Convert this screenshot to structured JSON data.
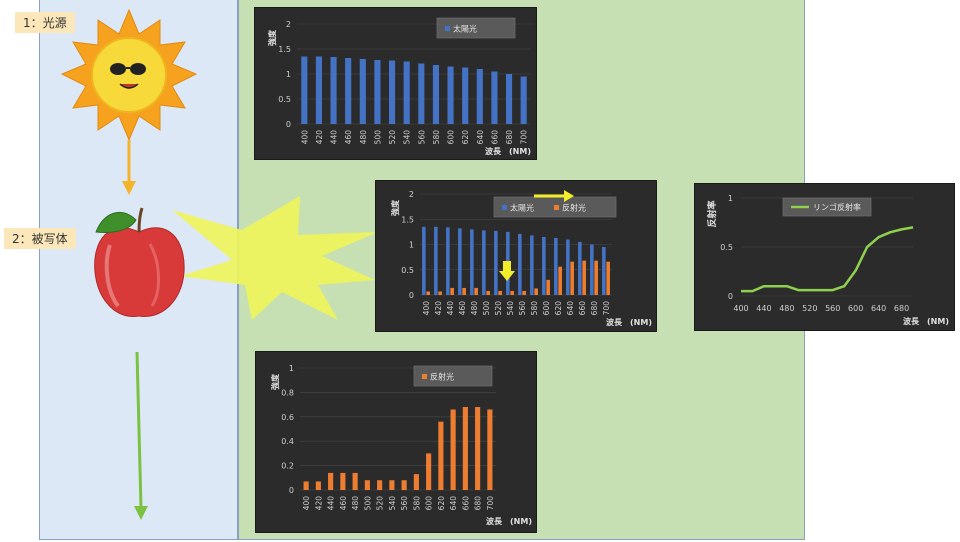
{
  "steps": {
    "step1": "1：光源",
    "step2": "2：被写体"
  },
  "colors": {
    "sun_series": "#4472c4",
    "reflect_series": "#ed7d31",
    "ratio_series": "#8fd14f",
    "arrow_orange": "#f5b32a",
    "arrow_green": "#7cc242",
    "glow": "#eef55a"
  },
  "icons": [
    "sun-icon",
    "apple-icon",
    "burst-icon"
  ],
  "chart_data": [
    {
      "id": "sun",
      "type": "bar",
      "ylabel": "強度",
      "xlabel": "波長　(NM)",
      "ylim": [
        0,
        2
      ],
      "yticks": [
        "0",
        "0.5",
        "1",
        "1.5",
        "2"
      ],
      "categories": [
        "400",
        "420",
        "440",
        "460",
        "480",
        "500",
        "520",
        "540",
        "560",
        "580",
        "600",
        "620",
        "640",
        "660",
        "680",
        "700"
      ],
      "legend_position": "top-right",
      "series": [
        {
          "name": "太陽光",
          "color": "#4472c4",
          "values": [
            1.35,
            1.35,
            1.34,
            1.32,
            1.3,
            1.28,
            1.27,
            1.25,
            1.21,
            1.18,
            1.15,
            1.13,
            1.1,
            1.05,
            1.0,
            0.95
          ]
        }
      ]
    },
    {
      "id": "combined",
      "type": "bar",
      "ylabel": "強度",
      "xlabel": "波長　(NM)",
      "ylim": [
        0,
        2
      ],
      "yticks": [
        "0",
        "0.5",
        "1",
        "1.5",
        "2"
      ],
      "categories": [
        "400",
        "420",
        "440",
        "460",
        "480",
        "500",
        "520",
        "540",
        "560",
        "580",
        "600",
        "620",
        "640",
        "660",
        "680",
        "700"
      ],
      "legend_position": "top-right",
      "series": [
        {
          "name": "太陽光",
          "color": "#4472c4",
          "values": [
            1.35,
            1.35,
            1.34,
            1.32,
            1.3,
            1.28,
            1.27,
            1.25,
            1.21,
            1.18,
            1.15,
            1.13,
            1.1,
            1.05,
            1.0,
            0.95
          ]
        },
        {
          "name": "反射光",
          "color": "#ed7d31",
          "values": [
            0.07,
            0.07,
            0.14,
            0.14,
            0.14,
            0.08,
            0.08,
            0.08,
            0.08,
            0.13,
            0.3,
            0.56,
            0.66,
            0.68,
            0.68,
            0.66
          ]
        }
      ]
    },
    {
      "id": "reflect",
      "type": "bar",
      "ylabel": "強度",
      "xlabel": "波長　(NM)",
      "ylim": [
        0,
        1
      ],
      "yticks": [
        "0",
        "0.2",
        "0.4",
        "0.6",
        "0.8",
        "1"
      ],
      "categories": [
        "400",
        "420",
        "440",
        "460",
        "480",
        "500",
        "520",
        "540",
        "560",
        "580",
        "600",
        "620",
        "640",
        "660",
        "680",
        "700"
      ],
      "legend_position": "top-right",
      "series": [
        {
          "name": "反射光",
          "color": "#ed7d31",
          "values": [
            0.07,
            0.07,
            0.14,
            0.14,
            0.14,
            0.08,
            0.08,
            0.08,
            0.08,
            0.13,
            0.3,
            0.56,
            0.66,
            0.68,
            0.68,
            0.66
          ]
        }
      ]
    },
    {
      "id": "ratio",
      "type": "line",
      "ylabel": "反射率",
      "xlabel": "波長　(NM)",
      "ylim": [
        0,
        1
      ],
      "yticks": [
        "0",
        "0.5",
        "1"
      ],
      "xlim": [
        400,
        700
      ],
      "xticks": [
        "400",
        "440",
        "480",
        "520",
        "560",
        "600",
        "640",
        "680"
      ],
      "legend_position": "top-center",
      "series": [
        {
          "name": "リンゴ反射率",
          "color": "#8fd14f",
          "x": [
            400,
            420,
            440,
            460,
            480,
            500,
            520,
            540,
            560,
            580,
            600,
            620,
            640,
            660,
            680,
            700
          ],
          "values": [
            0.05,
            0.05,
            0.1,
            0.1,
            0.1,
            0.06,
            0.06,
            0.06,
            0.06,
            0.1,
            0.26,
            0.5,
            0.6,
            0.65,
            0.68,
            0.7
          ]
        }
      ]
    }
  ]
}
